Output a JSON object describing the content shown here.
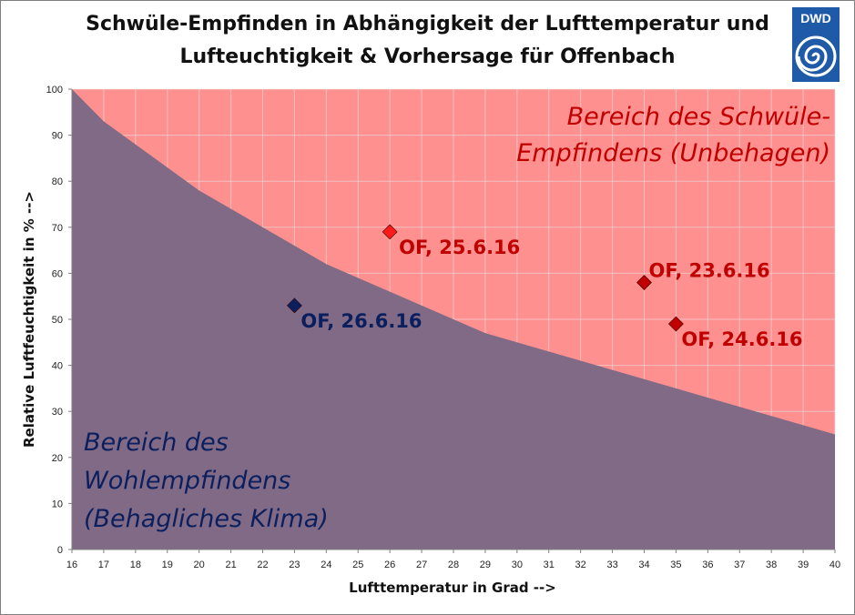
{
  "title": {
    "line1": "Schwüle-Empfinden in Abhängigkeit der Lufttemperatur und",
    "line2": "Lufteuchtigkeit & Vorhersage für Offenbach"
  },
  "logo": {
    "text": "DWD",
    "icon": "dwd-swirl-icon"
  },
  "colors": {
    "uncomfortable_region": "#ff9090",
    "comfortable_region": "#806a86",
    "uncomfortable_text": "#c00000",
    "comfortable_text": "#0b1f5e",
    "grid": "#e8e8e8"
  },
  "chart_data": {
    "type": "area",
    "xlabel": "Lufttemperatur in Grad -->",
    "ylabel": "Relative Luftfeuchtigkeit in % -->",
    "xlim": [
      16,
      40
    ],
    "ylim": [
      0,
      100
    ],
    "xticks": [
      16,
      17,
      18,
      19,
      20,
      21,
      22,
      23,
      24,
      25,
      26,
      27,
      28,
      29,
      30,
      31,
      32,
      33,
      34,
      35,
      36,
      37,
      38,
      39,
      40
    ],
    "yticks": [
      0,
      10,
      20,
      30,
      40,
      50,
      60,
      70,
      80,
      90,
      100
    ],
    "grid": true,
    "boundary": {
      "x": [
        16,
        17,
        20,
        24,
        29,
        34,
        40
      ],
      "y": [
        100,
        93,
        78,
        62,
        47,
        37,
        25
      ]
    },
    "regions": [
      {
        "label_lines": [
          "Bereich des Schwüle-",
          "Empfindens (Unbehagen)"
        ],
        "side": "above"
      },
      {
        "label_lines": [
          "Bereich des",
          "Wohlempfindens",
          "(Behagliches Klima)"
        ],
        "side": "below"
      }
    ],
    "points": [
      {
        "label": "OF, 25.6.16",
        "x": 26,
        "y": 69,
        "color": "#ff1a1a",
        "text_color": "#c00000"
      },
      {
        "label": "OF, 23.6.16",
        "x": 34,
        "y": 58,
        "color": "#c00000",
        "text_color": "#c00000"
      },
      {
        "label": "OF, 24.6.16",
        "x": 35,
        "y": 49,
        "color": "#c00000",
        "text_color": "#c00000"
      },
      {
        "label": "OF, 26.6.16",
        "x": 23,
        "y": 53,
        "color": "#0b1f5e",
        "text_color": "#0b1f5e"
      }
    ]
  }
}
